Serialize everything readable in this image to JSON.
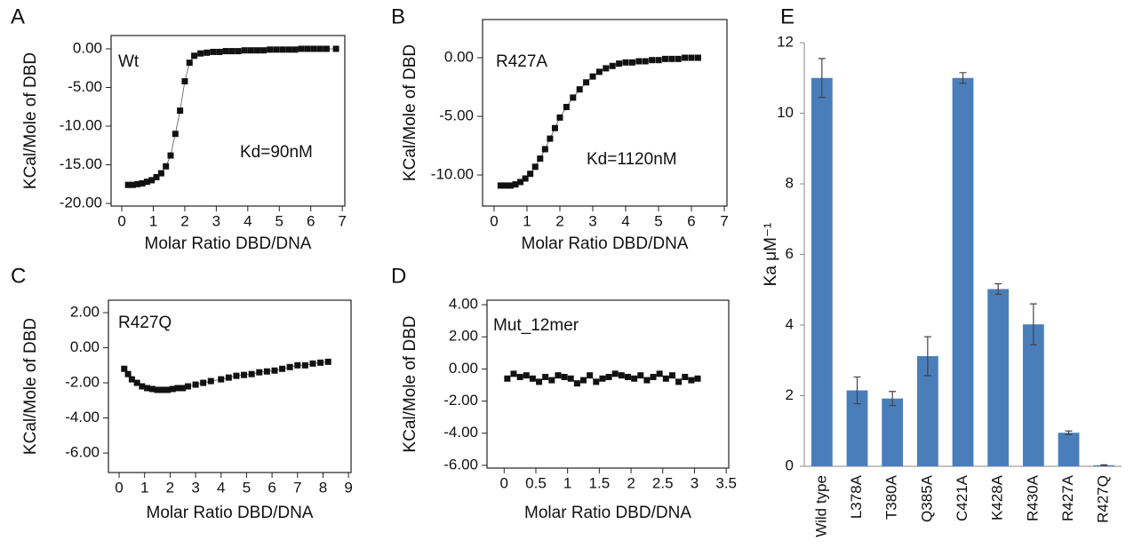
{
  "chart_data": [
    {
      "type": "scatter",
      "panel": "A",
      "annotations": [
        "Wt",
        "Kd=90nM"
      ],
      "xlabel": "Molar Ratio DBD/DNA",
      "ylabel": "KCal/Mole of DBD",
      "color": "#111111",
      "x": [
        0.2,
        0.35,
        0.5,
        0.65,
        0.8,
        0.95,
        1.1,
        1.25,
        1.4,
        1.55,
        1.7,
        1.85,
        2.0,
        2.15,
        2.3,
        2.5,
        2.7,
        2.9,
        3.1,
        3.3,
        3.5,
        3.7,
        3.9,
        4.1,
        4.3,
        4.5,
        4.7,
        4.9,
        5.1,
        5.3,
        5.5,
        5.7,
        5.9,
        6.1,
        6.3,
        6.5,
        6.8
      ],
      "values": [
        -17.6,
        -17.6,
        -17.5,
        -17.4,
        -17.2,
        -17.0,
        -16.6,
        -16.1,
        -15.2,
        -13.8,
        -11.0,
        -8.0,
        -4.2,
        -1.8,
        -0.9,
        -0.6,
        -0.5,
        -0.4,
        -0.4,
        -0.3,
        -0.3,
        -0.3,
        -0.2,
        -0.2,
        -0.2,
        -0.2,
        -0.1,
        -0.1,
        -0.1,
        -0.1,
        -0.1,
        0,
        0,
        0,
        0,
        0,
        0
      ],
      "xlim": [
        -0.34,
        7.08
      ],
      "xticks": [
        0,
        1,
        2,
        3,
        4,
        5,
        6,
        7
      ],
      "ylim": [
        -20.34,
        1.72
      ],
      "yticks": [
        {
          "value": 0,
          "label": "0.00"
        },
        {
          "value": -5,
          "label": "-5.00"
        },
        {
          "value": -10,
          "label": "-10.00"
        },
        {
          "value": -15,
          "label": "-15.00"
        },
        {
          "value": -20,
          "label": "-20.00"
        }
      ]
    },
    {
      "type": "scatter",
      "panel": "B",
      "annotations": [
        "R427A",
        "Kd=1120nM"
      ],
      "xlabel": "Molar Ratio DBD/DNA",
      "ylabel": "KCal/Mole of DBD",
      "color": "#111111",
      "x": [
        0.2,
        0.35,
        0.5,
        0.65,
        0.8,
        0.95,
        1.1,
        1.25,
        1.4,
        1.55,
        1.7,
        1.85,
        2.0,
        2.2,
        2.4,
        2.6,
        2.8,
        3.0,
        3.2,
        3.4,
        3.6,
        3.8,
        4.0,
        4.2,
        4.4,
        4.6,
        4.8,
        5.0,
        5.2,
        5.4,
        5.6,
        5.8,
        6.0,
        6.2
      ],
      "values": [
        -10.9,
        -10.9,
        -10.9,
        -10.8,
        -10.6,
        -10.3,
        -9.9,
        -9.3,
        -8.6,
        -7.8,
        -6.9,
        -6.0,
        -5.1,
        -4.2,
        -3.4,
        -2.7,
        -2.1,
        -1.6,
        -1.2,
        -0.9,
        -0.7,
        -0.5,
        -0.4,
        -0.4,
        -0.3,
        -0.3,
        -0.2,
        -0.2,
        -0.1,
        -0.1,
        -0.1,
        0,
        0,
        0
      ],
      "xlim": [
        -0.35,
        7.08
      ],
      "xticks": [
        0,
        1,
        2,
        3,
        4,
        5,
        6,
        7
      ],
      "ylim": [
        -12.65,
        3.26
      ],
      "yticks": [
        {
          "value": 0,
          "label": "0.00"
        },
        {
          "value": -5,
          "label": "-5.00"
        },
        {
          "value": -10,
          "label": "-10.00"
        }
      ]
    },
    {
      "type": "scatter",
      "panel": "C",
      "annotations": [
        "R427Q"
      ],
      "xlabel": "Molar Ratio DBD/DNA",
      "ylabel": "KCal/Mole of DBD",
      "color": "#111111",
      "x": [
        0.2,
        0.35,
        0.5,
        0.7,
        0.9,
        1.1,
        1.3,
        1.5,
        1.7,
        1.9,
        2.1,
        2.3,
        2.5,
        2.7,
        3.0,
        3.3,
        3.6,
        4.0,
        4.3,
        4.6,
        4.9,
        5.2,
        5.5,
        5.8,
        6.1,
        6.4,
        6.7,
        7.0,
        7.3,
        7.6,
        7.9,
        8.2
      ],
      "values": [
        -1.2,
        -1.5,
        -1.8,
        -2.0,
        -2.2,
        -2.3,
        -2.35,
        -2.4,
        -2.4,
        -2.4,
        -2.35,
        -2.3,
        -2.3,
        -2.2,
        -2.1,
        -2.0,
        -1.9,
        -1.8,
        -1.7,
        -1.6,
        -1.55,
        -1.5,
        -1.4,
        -1.35,
        -1.3,
        -1.2,
        -1.1,
        -1.0,
        -1.0,
        -0.9,
        -0.85,
        -0.8
      ],
      "xlim": [
        -0.42,
        9.1
      ],
      "xticks": [
        0,
        1,
        2,
        3,
        4,
        5,
        6,
        7,
        8,
        9
      ],
      "ylim": [
        -7.11,
        2.71
      ],
      "yticks": [
        {
          "value": 2,
          "label": "2.00"
        },
        {
          "value": 0,
          "label": "0.00"
        },
        {
          "value": -2,
          "label": "-2.00"
        },
        {
          "value": -4,
          "label": "-4.00"
        },
        {
          "value": -6,
          "label": "-6.00"
        }
      ]
    },
    {
      "type": "scatter",
      "panel": "D",
      "annotations": [
        "Mut_12mer"
      ],
      "xlabel": "Molar Ratio DBD/DNA",
      "ylabel": "KCal/Mole of DBD",
      "color": "#111111",
      "x": [
        0.05,
        0.15,
        0.25,
        0.35,
        0.45,
        0.55,
        0.65,
        0.75,
        0.85,
        0.95,
        1.05,
        1.15,
        1.25,
        1.35,
        1.45,
        1.55,
        1.65,
        1.75,
        1.85,
        1.95,
        2.05,
        2.15,
        2.25,
        2.35,
        2.45,
        2.55,
        2.65,
        2.75,
        2.85,
        2.95,
        3.05
      ],
      "values": [
        -0.6,
        -0.3,
        -0.5,
        -0.4,
        -0.6,
        -0.8,
        -0.5,
        -0.7,
        -0.4,
        -0.5,
        -0.6,
        -0.9,
        -0.7,
        -0.4,
        -0.8,
        -0.6,
        -0.5,
        -0.3,
        -0.4,
        -0.5,
        -0.6,
        -0.4,
        -0.7,
        -0.5,
        -0.3,
        -0.6,
        -0.4,
        -0.8,
        -0.5,
        -0.7,
        -0.6
      ],
      "xlim": [
        -0.27,
        3.54
      ],
      "xticks": [
        0,
        0.5,
        1,
        1.5,
        2,
        2.5,
        3,
        3.5
      ],
      "ylim": [
        -6.17,
        4.28
      ],
      "yticks": [
        {
          "value": 4,
          "label": "4.00"
        },
        {
          "value": 2,
          "label": "2.00"
        },
        {
          "value": 0,
          "label": "0.00"
        },
        {
          "value": -2,
          "label": "-2.00"
        },
        {
          "value": -4,
          "label": "-4.00"
        },
        {
          "value": -6,
          "label": "-6.00"
        }
      ]
    },
    {
      "type": "bar",
      "panel": "E",
      "ylabel": "Ka μM⁻¹",
      "color": "#4a7ebb",
      "categories": [
        "Wild type",
        "L378A",
        "T380A",
        "Q385A",
        "C421A",
        "K428A",
        "R430A",
        "R427A",
        "R427Q"
      ],
      "values": [
        11.0,
        2.15,
        1.92,
        3.12,
        11.0,
        5.02,
        4.02,
        0.95,
        0.03
      ],
      "errors": [
        0.55,
        0.38,
        0.2,
        0.55,
        0.15,
        0.15,
        0.58,
        0.05,
        0.01
      ],
      "ylim": [
        0,
        12
      ],
      "yticks": [
        0,
        2,
        4,
        6,
        8,
        10,
        12
      ]
    }
  ]
}
